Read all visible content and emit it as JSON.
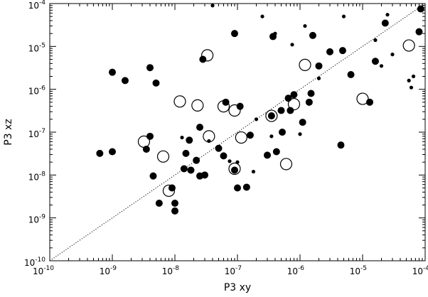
{
  "chart_data": {
    "type": "scatter",
    "title": "",
    "xlabel": "P3 xy",
    "ylabel": "P3 xz",
    "xscale": "log",
    "yscale": "log",
    "xlim": [
      1e-10,
      0.0001
    ],
    "ylim": [
      1e-10,
      0.0001
    ],
    "grid": false,
    "legend": "none",
    "x_ticks": [
      {
        "value": 1e-10,
        "base": "10",
        "exp": "-10"
      },
      {
        "value": 1e-09,
        "base": "10",
        "exp": "-9"
      },
      {
        "value": 1e-08,
        "base": "10",
        "exp": "-8"
      },
      {
        "value": 1e-07,
        "base": "10",
        "exp": "-7"
      },
      {
        "value": 1e-06,
        "base": "10",
        "exp": "-6"
      },
      {
        "value": 1e-05,
        "base": "10",
        "exp": "-5"
      },
      {
        "value": 0.0001,
        "base": "10",
        "exp": "-4"
      }
    ],
    "y_ticks": [
      {
        "value": 1e-10,
        "base": "10",
        "exp": "-10"
      },
      {
        "value": 1e-09,
        "base": "10",
        "exp": "-9"
      },
      {
        "value": 1e-08,
        "base": "10",
        "exp": "-8"
      },
      {
        "value": 1e-07,
        "base": "10",
        "exp": "-7"
      },
      {
        "value": 1e-06,
        "base": "10",
        "exp": "-6"
      },
      {
        "value": 1e-05,
        "base": "10",
        "exp": "-5"
      },
      {
        "value": 0.0001,
        "base": "10",
        "exp": "-4"
      }
    ],
    "reference_line": {
      "style": "dotted",
      "from": [
        1e-10,
        1e-10
      ],
      "to": [
        0.0001,
        0.0001
      ]
    },
    "series": [
      {
        "marker": "filled-circle",
        "color": "#000000",
        "points": [
          {
            "x": 6.3e-10,
            "y": 3.2e-08,
            "size": "large"
          },
          {
            "x": 1e-09,
            "y": 3.5e-08,
            "size": "large"
          },
          {
            "x": 1e-09,
            "y": 2.5e-06,
            "size": "large"
          },
          {
            "x": 1.6e-09,
            "y": 1.6e-06,
            "size": "large"
          },
          {
            "x": 3.5e-09,
            "y": 4e-08,
            "size": "large"
          },
          {
            "x": 4e-09,
            "y": 8e-08,
            "size": "large"
          },
          {
            "x": 4e-09,
            "y": 3.2e-06,
            "size": "large"
          },
          {
            "x": 4.5e-09,
            "y": 9.5e-09,
            "size": "large"
          },
          {
            "x": 5e-09,
            "y": 1.4e-06,
            "size": "large"
          },
          {
            "x": 5.6e-09,
            "y": 2.2e-09,
            "size": "large"
          },
          {
            "x": 9e-09,
            "y": 5e-09,
            "size": "large"
          },
          {
            "x": 1e-08,
            "y": 2.2e-09,
            "size": "large"
          },
          {
            "x": 1e-08,
            "y": 1.45e-09,
            "size": "large"
          },
          {
            "x": 1.3e-08,
            "y": 7.5e-08,
            "size": "small"
          },
          {
            "x": 1.4e-08,
            "y": 1.4e-08,
            "size": "large"
          },
          {
            "x": 1.5e-08,
            "y": 3.2e-08,
            "size": "large"
          },
          {
            "x": 1.7e-08,
            "y": 6.5e-08,
            "size": "large"
          },
          {
            "x": 1.8e-08,
            "y": 1.3e-08,
            "size": "large"
          },
          {
            "x": 2.2e-08,
            "y": 2.2e-08,
            "size": "large"
          },
          {
            "x": 2.5e-08,
            "y": 9.5e-09,
            "size": "large"
          },
          {
            "x": 2.5e-08,
            "y": 1.3e-07,
            "size": "large"
          },
          {
            "x": 2.8e-08,
            "y": 5e-06,
            "size": "large"
          },
          {
            "x": 3e-08,
            "y": 1e-08,
            "size": "large"
          },
          {
            "x": 3.5e-08,
            "y": 6.2e-08,
            "size": "small"
          },
          {
            "x": 4e-08,
            "y": 9e-05,
            "size": "small"
          },
          {
            "x": 5e-08,
            "y": 4.2e-08,
            "size": "large"
          },
          {
            "x": 6e-08,
            "y": 2.8e-08,
            "size": "large"
          },
          {
            "x": 6.5e-08,
            "y": 5e-07,
            "size": "large"
          },
          {
            "x": 7.5e-08,
            "y": 2.1e-08,
            "size": "small"
          },
          {
            "x": 9e-08,
            "y": 1.3e-08,
            "size": "large"
          },
          {
            "x": 9e-08,
            "y": 2e-05,
            "size": "large"
          },
          {
            "x": 1e-07,
            "y": 5e-09,
            "size": "large"
          },
          {
            "x": 1e-07,
            "y": 2e-08,
            "size": "small"
          },
          {
            "x": 1.1e-07,
            "y": 4e-07,
            "size": "large"
          },
          {
            "x": 1.4e-07,
            "y": 5.2e-09,
            "size": "large"
          },
          {
            "x": 1.6e-07,
            "y": 8.5e-08,
            "size": "large"
          },
          {
            "x": 1.8e-07,
            "y": 1.2e-08,
            "size": "small"
          },
          {
            "x": 2e-07,
            "y": 2e-07,
            "size": "small"
          },
          {
            "x": 2.5e-07,
            "y": 5e-05,
            "size": "small"
          },
          {
            "x": 3e-07,
            "y": 2.9e-08,
            "size": "large"
          },
          {
            "x": 3.5e-07,
            "y": 8e-08,
            "size": "small"
          },
          {
            "x": 3.5e-07,
            "y": 2.4e-07,
            "size": "large"
          },
          {
            "x": 3.7e-07,
            "y": 1.7e-05,
            "size": "large"
          },
          {
            "x": 4e-07,
            "y": 2e-05,
            "size": "small"
          },
          {
            "x": 4.2e-07,
            "y": 3.5e-08,
            "size": "large"
          },
          {
            "x": 5e-07,
            "y": 3.2e-07,
            "size": "large"
          },
          {
            "x": 5.2e-07,
            "y": 1e-07,
            "size": "large"
          },
          {
            "x": 6.5e-07,
            "y": 6.2e-07,
            "size": "large"
          },
          {
            "x": 7e-07,
            "y": 3.2e-07,
            "size": "large"
          },
          {
            "x": 7.5e-07,
            "y": 1.1e-05,
            "size": "small"
          },
          {
            "x": 8e-07,
            "y": 7.5e-07,
            "size": "large"
          },
          {
            "x": 1e-06,
            "y": 9e-08,
            "size": "small"
          },
          {
            "x": 1.1e-06,
            "y": 1.7e-07,
            "size": "large"
          },
          {
            "x": 1.2e-06,
            "y": 3e-05,
            "size": "small"
          },
          {
            "x": 1.4e-06,
            "y": 5e-07,
            "size": "large"
          },
          {
            "x": 1.5e-06,
            "y": 8e-07,
            "size": "large"
          },
          {
            "x": 1.6e-06,
            "y": 1.8e-05,
            "size": "large"
          },
          {
            "x": 2e-06,
            "y": 1.8e-06,
            "size": "small"
          },
          {
            "x": 2e-06,
            "y": 3.5e-06,
            "size": "large"
          },
          {
            "x": 3e-06,
            "y": 7.5e-06,
            "size": "large"
          },
          {
            "x": 4.5e-06,
            "y": 5e-08,
            "size": "large"
          },
          {
            "x": 4.8e-06,
            "y": 8e-06,
            "size": "large"
          },
          {
            "x": 5e-06,
            "y": 5e-05,
            "size": "small"
          },
          {
            "x": 6.5e-06,
            "y": 2.2e-06,
            "size": "large"
          },
          {
            "x": 1.3e-05,
            "y": 5e-07,
            "size": "large"
          },
          {
            "x": 1.6e-05,
            "y": 4.5e-06,
            "size": "large"
          },
          {
            "x": 1.6e-05,
            "y": 1.4e-05,
            "size": "small"
          },
          {
            "x": 2e-05,
            "y": 3.5e-06,
            "size": "small"
          },
          {
            "x": 2.3e-05,
            "y": 3.5e-05,
            "size": "large"
          },
          {
            "x": 2.5e-05,
            "y": 5.5e-05,
            "size": "small"
          },
          {
            "x": 3e-05,
            "y": 6.5e-06,
            "size": "small"
          },
          {
            "x": 5.5e-05,
            "y": 1.6e-06,
            "size": "small"
          },
          {
            "x": 6e-05,
            "y": 1.1e-06,
            "size": "small"
          },
          {
            "x": 6.5e-05,
            "y": 2e-06,
            "size": "small"
          },
          {
            "x": 8e-05,
            "y": 2.2e-05,
            "size": "large"
          },
          {
            "x": 8.5e-05,
            "y": 7.5e-05,
            "size": "large"
          }
        ]
      },
      {
        "marker": "open-circle",
        "color": "#000000",
        "points": [
          {
            "x": 3.2e-09,
            "y": 6e-08
          },
          {
            "x": 6.5e-09,
            "y": 2.7e-08
          },
          {
            "x": 8e-09,
            "y": 4.3e-09
          },
          {
            "x": 1.2e-08,
            "y": 5.2e-07
          },
          {
            "x": 2.3e-08,
            "y": 4.2e-07
          },
          {
            "x": 3.3e-08,
            "y": 6.2e-06
          },
          {
            "x": 3.5e-08,
            "y": 8e-08
          },
          {
            "x": 6e-08,
            "y": 4e-07
          },
          {
            "x": 9e-08,
            "y": 3.2e-07
          },
          {
            "x": 9e-08,
            "y": 1.4e-08
          },
          {
            "x": 1.15e-07,
            "y": 7.5e-08
          },
          {
            "x": 3.5e-07,
            "y": 2.4e-07
          },
          {
            "x": 6e-07,
            "y": 1.8e-08
          },
          {
            "x": 8e-07,
            "y": 4.5e-07
          },
          {
            "x": 1.2e-06,
            "y": 3.7e-06
          },
          {
            "x": 1e-05,
            "y": 6e-07
          },
          {
            "x": 5.5e-05,
            "y": 1.05e-05
          }
        ]
      }
    ]
  }
}
